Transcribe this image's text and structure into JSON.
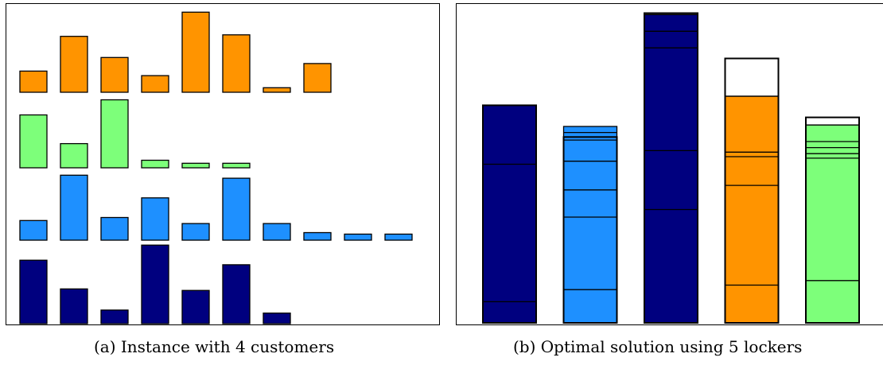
{
  "colors": {
    "navy": "#00007f",
    "blue": "#1e90ff",
    "green": "#7dff7a",
    "orange": "#ff9400",
    "empty": "#ffffff",
    "stroke": "#000000"
  },
  "captions": {
    "a": "(a) Instance with 4 customers",
    "b": "(b) Optimal solution using 5 lockers"
  },
  "instance": {
    "customers": [
      {
        "color": "orange",
        "items": [
          14,
          37,
          23,
          11,
          53,
          38,
          3,
          19
        ]
      },
      {
        "color": "green",
        "items": [
          35,
          16,
          45,
          5,
          3,
          3
        ]
      },
      {
        "color": "blue",
        "items": [
          13,
          43,
          15,
          28,
          11,
          41,
          11,
          5,
          4,
          4
        ]
      },
      {
        "color": "navy",
        "items": [
          42,
          23,
          9,
          52,
          22,
          39,
          7
        ]
      }
    ]
  },
  "solution": {
    "lockers": [
      {
        "color": "navy",
        "capacity": 144,
        "parts": [
          14,
          91,
          39
        ]
      },
      {
        "color": "blue",
        "capacity": 123,
        "parts": [
          22,
          48,
          18,
          19,
          14,
          5,
          4
        ]
      },
      {
        "color": "navy",
        "capacity": 205,
        "parts": [
          75,
          39,
          68,
          11,
          11
        ]
      },
      {
        "color": "orange",
        "capacity": 175,
        "parts": [
          25,
          66,
          19,
          3,
          37
        ]
      },
      {
        "color": "green",
        "capacity": 136,
        "parts": [
          28,
          81,
          3,
          4,
          4,
          11
        ]
      }
    ]
  }
}
